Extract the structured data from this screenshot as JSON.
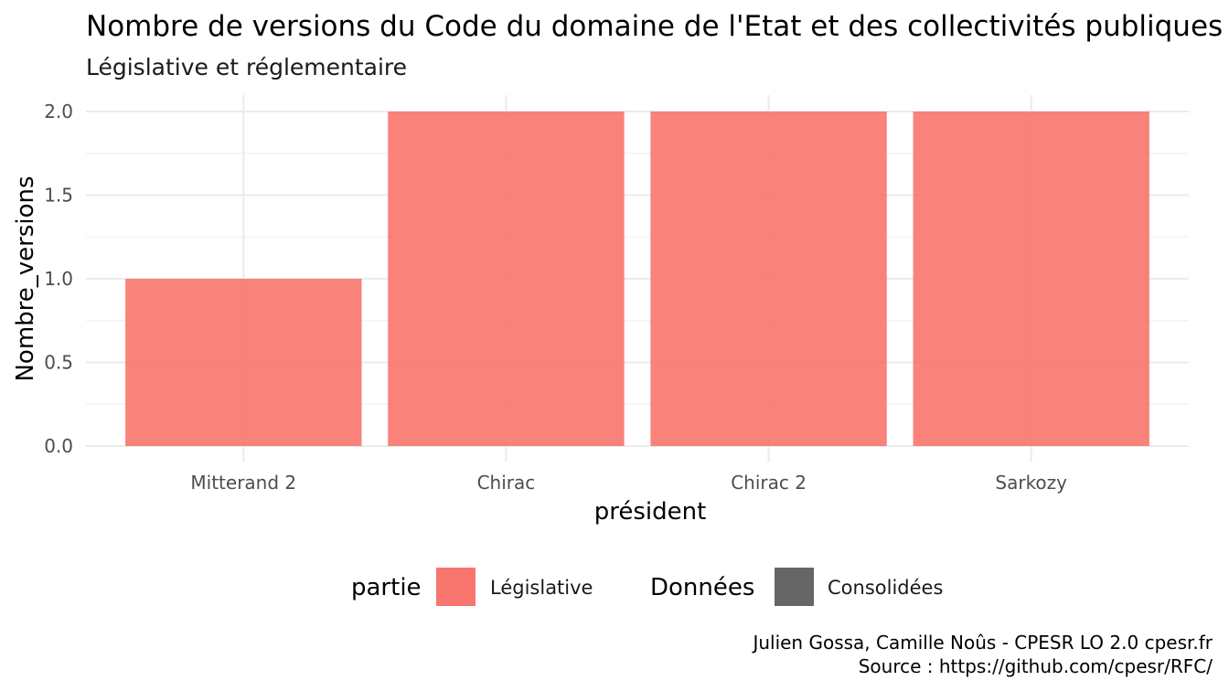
{
  "chart_data": {
    "type": "bar",
    "title": "Nombre de versions du Code du domaine de l'Etat et des collectivités publiques",
    "subtitle": "Législative et réglementaire",
    "xlabel": "président",
    "ylabel": "Nombre_versions",
    "categories": [
      "Mitterand 2",
      "Chirac",
      "Chirac 2",
      "Sarkozy"
    ],
    "series": [
      {
        "name": "Législative",
        "values": [
          1,
          2,
          2,
          2
        ]
      }
    ],
    "ylim": [
      0,
      2
    ],
    "yticks": [
      "0.0",
      "0.5",
      "1.0",
      "1.5",
      "2.0"
    ],
    "ytick_values": [
      0,
      0.5,
      1,
      1.5,
      2
    ],
    "grid": true,
    "bar_color": "#f8766d",
    "legend": {
      "placement": "bottom",
      "groups": [
        {
          "title": "partie",
          "label": "Législative",
          "color": "#f8766d"
        },
        {
          "title": "Données",
          "label": "Consolidées",
          "color": "#666666"
        }
      ]
    },
    "caption": [
      "Julien Gossa, Camille Noûs - CPESR LO 2.0 cpesr.fr",
      "Source : https://github.com/cpesr/RFC/"
    ]
  }
}
